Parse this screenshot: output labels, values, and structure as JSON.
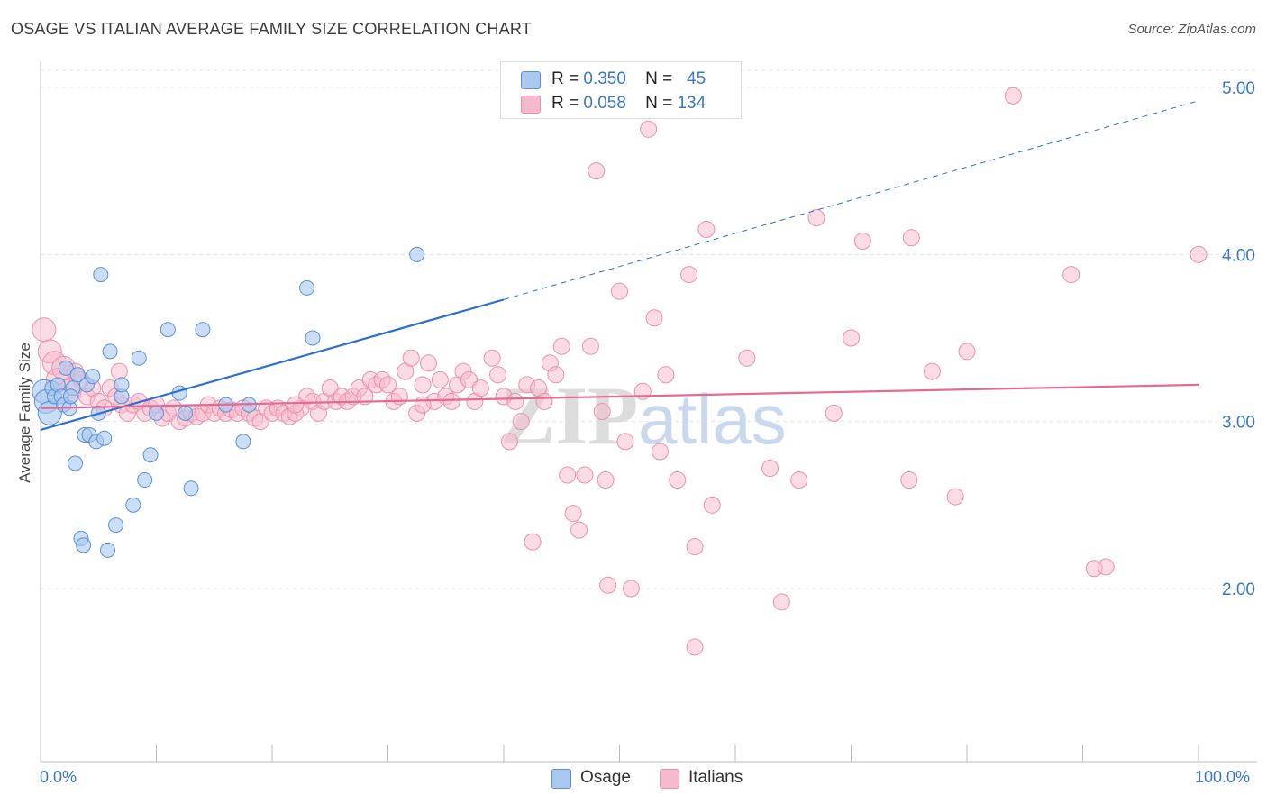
{
  "header": {
    "title": "OSAGE VS ITALIAN AVERAGE FAMILY SIZE CORRELATION CHART",
    "source": "Source: ZipAtlas.com"
  },
  "legend": {
    "osage": {
      "r_label": "R =",
      "r_value": "0.350",
      "n_label": "N =",
      "n_value": "45"
    },
    "italians": {
      "r_label": "R =",
      "r_value": "0.058",
      "n_label": "N =",
      "n_value": "134"
    }
  },
  "bottom_legend": {
    "osage": "Osage",
    "italians": "Italians"
  },
  "x_axis": {
    "min_label": "0.0%",
    "max_label": "100.0%"
  },
  "watermark": {
    "zip": "ZIP",
    "atlas": "atlas"
  },
  "colors": {
    "blue_fill": "#a9c8f0",
    "blue_stroke": "#5b8fd6",
    "blue_line": "#2c6fd1",
    "pink_fill": "#f7b9cc",
    "pink_stroke": "#e990ad",
    "pink_line": "#e36a93",
    "axis_text": "#3a76c8",
    "grid": "#e3e3e3"
  },
  "chart_data": {
    "type": "scatter",
    "title": "OSAGE VS ITALIAN AVERAGE FAMILY SIZE CORRELATION CHART",
    "xlabel": "",
    "ylabel": "Average Family Size",
    "xlim": [
      0,
      100
    ],
    "ylim": [
      1.0,
      5.2
    ],
    "y_ticks": [
      2.0,
      3.0,
      4.0,
      5.0
    ],
    "y_tick_labels": [
      "2.00",
      "3.00",
      "4.00",
      "5.00"
    ],
    "x_tick_labels": [
      "0.0%",
      "100.0%"
    ],
    "series": [
      {
        "name": "Osage",
        "r": 0.35,
        "n": 45,
        "trend": {
          "x": [
            0,
            40
          ],
          "y": [
            2.95,
            3.73
          ],
          "dashed_to": [
            100,
            4.92
          ]
        },
        "points": [
          [
            0.3,
            3.18
          ],
          [
            0.5,
            3.12
          ],
          [
            0.8,
            3.05
          ],
          [
            1.0,
            3.2
          ],
          [
            1.2,
            3.15
          ],
          [
            1.5,
            3.22
          ],
          [
            1.8,
            3.15
          ],
          [
            2.0,
            3.1
          ],
          [
            2.2,
            3.32
          ],
          [
            2.5,
            3.08
          ],
          [
            2.8,
            3.2
          ],
          [
            3.0,
            2.75
          ],
          [
            3.2,
            3.28
          ],
          [
            3.5,
            2.3
          ],
          [
            3.8,
            2.92
          ],
          [
            4.0,
            3.22
          ],
          [
            3.7,
            2.26
          ],
          [
            4.2,
            2.92
          ],
          [
            4.5,
            3.27
          ],
          [
            4.8,
            2.88
          ],
          [
            5.0,
            3.05
          ],
          [
            5.2,
            3.88
          ],
          [
            5.5,
            2.9
          ],
          [
            5.8,
            2.23
          ],
          [
            6.0,
            3.42
          ],
          [
            6.5,
            2.38
          ],
          [
            7.0,
            3.15
          ],
          [
            7.0,
            3.22
          ],
          [
            8.0,
            2.5
          ],
          [
            8.5,
            3.38
          ],
          [
            9.0,
            2.65
          ],
          [
            9.5,
            2.8
          ],
          [
            10.0,
            3.05
          ],
          [
            11.0,
            3.55
          ],
          [
            12.0,
            3.17
          ],
          [
            12.5,
            3.05
          ],
          [
            13.0,
            2.6
          ],
          [
            14.0,
            3.55
          ],
          [
            16.0,
            3.1
          ],
          [
            17.5,
            2.88
          ],
          [
            18.0,
            3.1
          ],
          [
            23.0,
            3.8
          ],
          [
            23.5,
            3.5
          ],
          [
            32.5,
            4.0
          ],
          [
            2.6,
            3.15
          ]
        ]
      },
      {
        "name": "Italians",
        "r": 0.058,
        "n": 134,
        "trend": {
          "x": [
            0,
            100
          ],
          "y": [
            3.08,
            3.22
          ]
        },
        "points": [
          [
            0.3,
            3.55
          ],
          [
            0.8,
            3.42
          ],
          [
            1.2,
            3.35
          ],
          [
            1.5,
            3.25
          ],
          [
            2.0,
            3.32
          ],
          [
            2.5,
            3.18
          ],
          [
            3.0,
            3.3
          ],
          [
            3.5,
            3.25
          ],
          [
            4.0,
            3.15
          ],
          [
            4.5,
            3.2
          ],
          [
            5.0,
            3.12
          ],
          [
            5.5,
            3.08
          ],
          [
            6.0,
            3.2
          ],
          [
            6.5,
            3.15
          ],
          [
            7.0,
            3.1
          ],
          [
            7.5,
            3.05
          ],
          [
            8.0,
            3.1
          ],
          [
            8.5,
            3.12
          ],
          [
            9.0,
            3.05
          ],
          [
            9.5,
            3.08
          ],
          [
            10.0,
            3.1
          ],
          [
            10.5,
            3.02
          ],
          [
            11.0,
            3.05
          ],
          [
            11.5,
            3.08
          ],
          [
            12.0,
            3.0
          ],
          [
            12.5,
            3.02
          ],
          [
            13.0,
            3.05
          ],
          [
            13.5,
            3.03
          ],
          [
            14.0,
            3.05
          ],
          [
            14.5,
            3.1
          ],
          [
            15.0,
            3.05
          ],
          [
            15.5,
            3.08
          ],
          [
            16.0,
            3.05
          ],
          [
            16.5,
            3.07
          ],
          [
            17.0,
            3.05
          ],
          [
            17.5,
            3.08
          ],
          [
            18.0,
            3.05
          ],
          [
            18.5,
            3.02
          ],
          [
            19.0,
            3.0
          ],
          [
            19.5,
            3.08
          ],
          [
            20.0,
            3.05
          ],
          [
            20.5,
            3.08
          ],
          [
            21.0,
            3.05
          ],
          [
            21.5,
            3.03
          ],
          [
            22.0,
            3.05
          ],
          [
            22.5,
            3.08
          ],
          [
            23.0,
            3.15
          ],
          [
            23.5,
            3.12
          ],
          [
            24.0,
            3.05
          ],
          [
            24.5,
            3.12
          ],
          [
            25.0,
            3.2
          ],
          [
            25.5,
            3.12
          ],
          [
            26.0,
            3.15
          ],
          [
            26.5,
            3.12
          ],
          [
            27.0,
            3.15
          ],
          [
            27.5,
            3.2
          ],
          [
            28.0,
            3.15
          ],
          [
            28.5,
            3.25
          ],
          [
            29.0,
            3.22
          ],
          [
            29.5,
            3.25
          ],
          [
            30.0,
            3.22
          ],
          [
            30.5,
            3.12
          ],
          [
            31.0,
            3.15
          ],
          [
            31.5,
            3.3
          ],
          [
            32.0,
            3.38
          ],
          [
            32.5,
            3.05
          ],
          [
            33.0,
            3.22
          ],
          [
            33.5,
            3.35
          ],
          [
            34.0,
            3.12
          ],
          [
            34.5,
            3.25
          ],
          [
            35.0,
            3.15
          ],
          [
            35.5,
            3.12
          ],
          [
            36.0,
            3.22
          ],
          [
            36.5,
            3.3
          ],
          [
            37.0,
            3.25
          ],
          [
            37.5,
            3.12
          ],
          [
            38.0,
            3.2
          ],
          [
            39.0,
            3.38
          ],
          [
            39.5,
            3.28
          ],
          [
            40.0,
            3.15
          ],
          [
            40.5,
            2.88
          ],
          [
            41.0,
            3.12
          ],
          [
            41.5,
            3.0
          ],
          [
            42.0,
            3.22
          ],
          [
            42.5,
            2.28
          ],
          [
            43.0,
            3.2
          ],
          [
            43.5,
            3.12
          ],
          [
            44.0,
            3.35
          ],
          [
            44.5,
            3.28
          ],
          [
            45.0,
            3.45
          ],
          [
            45.5,
            2.68
          ],
          [
            46.0,
            2.45
          ],
          [
            46.5,
            2.35
          ],
          [
            47.0,
            2.68
          ],
          [
            47.5,
            3.45
          ],
          [
            48.0,
            4.5
          ],
          [
            48.5,
            3.06
          ],
          [
            49.0,
            2.02
          ],
          [
            50.0,
            3.78
          ],
          [
            50.5,
            2.88
          ],
          [
            51.0,
            2.0
          ],
          [
            52.0,
            3.18
          ],
          [
            52.5,
            4.75
          ],
          [
            53.0,
            3.62
          ],
          [
            53.5,
            2.82
          ],
          [
            54.0,
            3.28
          ],
          [
            55.0,
            2.65
          ],
          [
            56.0,
            3.88
          ],
          [
            56.5,
            2.25
          ],
          [
            57.5,
            4.15
          ],
          [
            58.0,
            2.5
          ],
          [
            61.0,
            3.38
          ],
          [
            63.0,
            2.72
          ],
          [
            64.0,
            1.92
          ],
          [
            65.5,
            2.65
          ],
          [
            67.0,
            4.22
          ],
          [
            68.5,
            3.05
          ],
          [
            70.0,
            3.5
          ],
          [
            71.0,
            4.08
          ],
          [
            75.0,
            2.65
          ],
          [
            75.2,
            4.1
          ],
          [
            77.0,
            3.3
          ],
          [
            79.0,
            2.55
          ],
          [
            80.0,
            3.42
          ],
          [
            84.0,
            4.95
          ],
          [
            89.0,
            3.88
          ],
          [
            91.0,
            2.12
          ],
          [
            92.0,
            2.13
          ],
          [
            100.0,
            4.0
          ],
          [
            56.5,
            1.65
          ],
          [
            33.0,
            3.1
          ],
          [
            6.8,
            3.3
          ],
          [
            48.8,
            2.65
          ],
          [
            22.0,
            3.1
          ]
        ]
      }
    ]
  }
}
